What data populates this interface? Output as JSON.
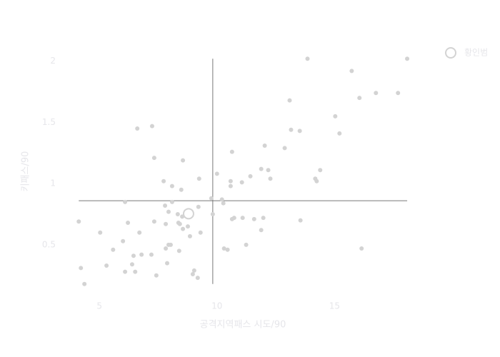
{
  "chart_data": {
    "type": "scatter",
    "x_label": "공격지역패스 시도/90",
    "y_label": "키패스/90",
    "xlim": [
      3.2,
      19
    ],
    "ylim": [
      0.05,
      2.15
    ],
    "xticks": [
      5,
      10,
      15
    ],
    "yticks": [
      0.5,
      1,
      1.5,
      2
    ],
    "vline": 9.82,
    "hline": 0.86,
    "line_color": "#777777",
    "legend": "top-right",
    "series": [
      {
        "color": "#d3d3d3",
        "x": [
          4.12,
          4.21,
          4.36,
          5.03,
          5.3,
          5.58,
          6.0,
          6.09,
          6.09,
          6.21,
          6.39,
          6.45,
          6.52,
          6.61,
          6.7,
          6.79,
          7.21,
          7.24,
          7.33,
          7.33,
          7.42,
          7.73,
          7.79,
          7.82,
          7.82,
          7.88,
          7.94,
          7.94,
          8.03,
          8.09,
          8.09,
          8.33,
          8.36,
          8.39,
          8.42,
          8.48,
          8.52,
          8.55,
          8.55,
          8.76,
          8.85,
          8.97,
          9.03,
          9.18,
          9.21,
          9.24,
          9.3,
          9.76,
          9.82,
          10.0,
          10.21,
          10.27,
          10.3,
          10.45,
          10.58,
          10.58,
          10.64,
          10.64,
          10.73,
          11.06,
          11.09,
          11.24,
          11.42,
          11.58,
          11.88,
          11.88,
          11.97,
          12.03,
          12.18,
          12.27,
          12.88,
          13.09,
          13.15,
          13.52,
          13.55,
          13.85,
          14.18,
          14.24,
          14.39,
          15.03,
          15.21,
          15.73,
          16.06,
          16.15,
          16.76,
          17.7,
          18.09
        ],
        "values": [
          0.69,
          0.31,
          0.18,
          0.6,
          0.33,
          0.46,
          0.53,
          0.85,
          0.28,
          0.68,
          0.34,
          0.41,
          0.28,
          1.45,
          0.6,
          0.42,
          0.42,
          1.47,
          1.21,
          0.69,
          0.25,
          1.02,
          0.82,
          0.67,
          0.47,
          0.35,
          0.77,
          0.5,
          0.5,
          0.98,
          0.85,
          0.75,
          0.68,
          0.45,
          0.67,
          0.95,
          0.73,
          1.19,
          0.63,
          0.65,
          0.57,
          0.26,
          0.29,
          0.23,
          0.81,
          1.04,
          0.6,
          0.88,
          0.75,
          1.08,
          0.87,
          0.84,
          0.47,
          0.46,
          1.02,
          0.98,
          1.26,
          0.71,
          0.72,
          1.01,
          0.72,
          0.5,
          1.06,
          0.71,
          1.12,
          0.62,
          0.72,
          1.31,
          1.11,
          1.04,
          1.29,
          1.68,
          1.44,
          1.43,
          0.7,
          2.02,
          1.04,
          1.02,
          1.11,
          1.55,
          1.41,
          1.92,
          1.7,
          0.47,
          1.74,
          1.74,
          2.02
        ]
      },
      {
        "name": "황인범",
        "color": "#d3d3d3",
        "marker": "open",
        "x": [
          8.79
        ],
        "values": [
          0.754
        ]
      }
    ]
  }
}
